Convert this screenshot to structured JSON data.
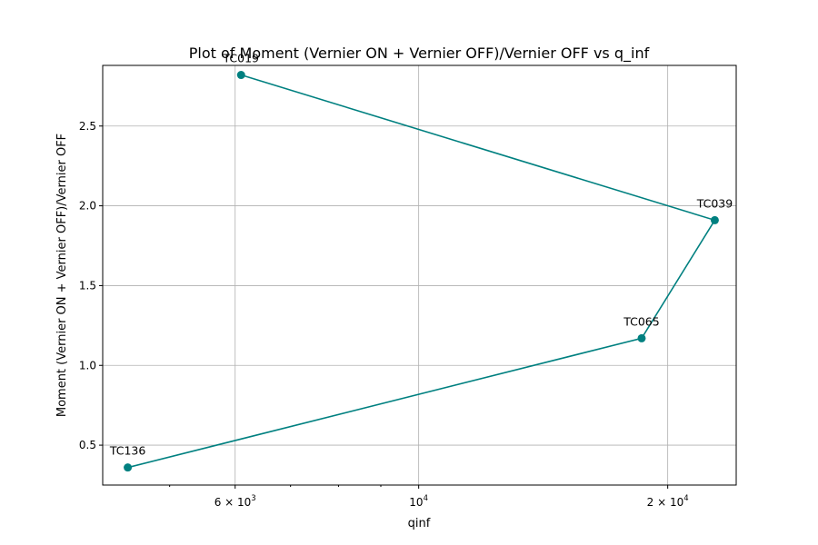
{
  "chart_data": {
    "type": "line",
    "title": "Plot of Moment (Vernier ON + Vernier OFF)/Vernier OFF vs q_inf",
    "xlabel": "qinf",
    "ylabel": "Moment (Vernier ON + Vernier OFF)/Vernier OFF",
    "xscale": "log",
    "xlim": [
      4150,
      24200
    ],
    "ylim": [
      0.25,
      2.88
    ],
    "grid": true,
    "line_color": "#008080",
    "x_ticks": [
      {
        "value": 6000,
        "base": "6 × 10",
        "exp": "3"
      },
      {
        "value": 10000,
        "base": "10",
        "exp": "4"
      },
      {
        "value": 20000,
        "base": "2 × 10",
        "exp": "4"
      }
    ],
    "y_ticks": [
      {
        "value": 0.5,
        "label": "0.5"
      },
      {
        "value": 1.0,
        "label": "1.0"
      },
      {
        "value": 1.5,
        "label": "1.5"
      },
      {
        "value": 2.0,
        "label": "2.0"
      },
      {
        "value": 2.5,
        "label": "2.5"
      }
    ],
    "points": [
      {
        "label": "TC019",
        "x": 6100,
        "y": 2.82
      },
      {
        "label": "TC039",
        "x": 22800,
        "y": 1.91
      },
      {
        "label": "TC065",
        "x": 18600,
        "y": 1.17
      },
      {
        "label": "TC136",
        "x": 4450,
        "y": 0.36
      }
    ]
  }
}
